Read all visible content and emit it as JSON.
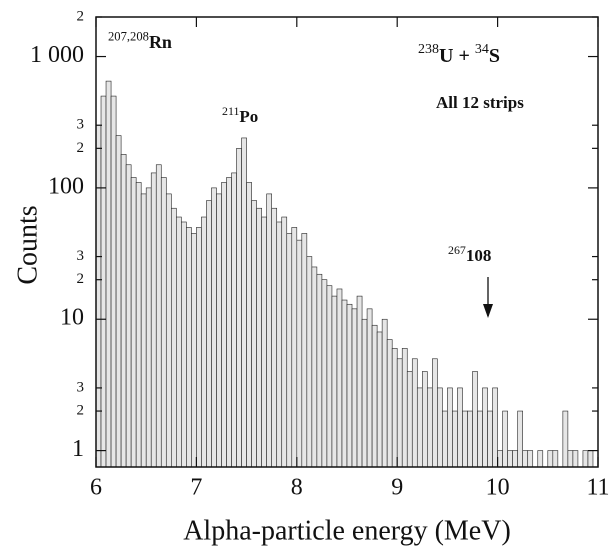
{
  "chart_data": {
    "type": "histogram",
    "xlabel": "Alpha-particle energy (MeV)",
    "ylabel": "Counts",
    "log_y": true,
    "color": "#e6e6e6",
    "edge_color": "#222222",
    "xlim": [
      6,
      11
    ],
    "xticks": [
      6,
      7,
      8,
      9,
      10,
      11
    ],
    "ylim": [
      0.75,
      2000
    ],
    "yticks": [
      1,
      2,
      3,
      10,
      {
        "value": 20,
        "label": "2"
      },
      {
        "value": 30,
        "label": "3"
      },
      100,
      {
        "value": 200,
        "label": "2"
      },
      {
        "value": 300,
        "label": "3"
      },
      {
        "value": 1000,
        "label": "1 000"
      },
      {
        "value": 2000,
        "label": "2"
      }
    ],
    "bins": [
      6,
      6.05,
      6.1,
      6.15,
      6.2,
      6.25,
      6.3,
      6.35,
      6.4,
      6.45,
      6.5,
      6.55,
      6.6,
      6.65,
      6.7,
      6.75,
      6.8,
      6.85,
      6.9,
      6.95,
      7,
      7.05,
      7.1,
      7.15,
      7.2,
      7.25,
      7.3,
      7.35,
      7.4,
      7.45,
      7.5,
      7.55,
      7.6,
      7.65,
      7.7,
      7.75,
      7.8,
      7.85,
      7.9,
      7.95,
      8,
      8.05,
      8.1,
      8.15,
      8.2,
      8.25,
      8.3,
      8.35,
      8.4,
      8.45,
      8.5,
      8.55,
      8.6,
      8.65,
      8.7,
      8.75,
      8.8,
      8.85,
      8.9,
      8.95,
      9,
      9.05,
      9.1,
      9.15,
      9.2,
      9.25,
      9.3,
      9.35,
      9.4,
      9.45,
      9.5,
      9.55,
      9.6,
      9.65,
      9.7,
      9.75,
      9.8,
      9.85,
      9.9,
      9.95,
      10,
      10.05,
      10.1,
      10.15,
      10.2,
      10.25,
      10.3,
      10.35,
      10.4,
      10.45,
      10.5,
      10.55,
      10.6,
      10.65,
      10.7,
      10.75,
      10.8,
      10.85,
      10.9,
      10.95,
      11
    ],
    "values": [
      300,
      500,
      650,
      500,
      250,
      180,
      150,
      120,
      110,
      90,
      100,
      130,
      150,
      120,
      90,
      70,
      60,
      55,
      50,
      45,
      50,
      60,
      80,
      100,
      90,
      110,
      120,
      130,
      200,
      240,
      110,
      80,
      70,
      60,
      90,
      70,
      55,
      60,
      45,
      50,
      40,
      45,
      30,
      25,
      22,
      20,
      18,
      15,
      17,
      14,
      13,
      12,
      15,
      10,
      12,
      9,
      8,
      10,
      7,
      6,
      5,
      6,
      4,
      5,
      3,
      4,
      3,
      5,
      3,
      2,
      3,
      2,
      3,
      2,
      2,
      4,
      2,
      3,
      2,
      3,
      1,
      2,
      1,
      1,
      2,
      1,
      1,
      0,
      1,
      0,
      1,
      1,
      0,
      2,
      1,
      1,
      0,
      1,
      1,
      0
    ],
    "annotations": [
      {
        "segments": [
          {
            "text": "207,208",
            "sup": true
          },
          {
            "text": "Rn",
            "sup": false
          }
        ]
      },
      {
        "segments": [
          {
            "text": "211",
            "sup": true
          },
          {
            "text": "Po",
            "sup": false
          }
        ]
      },
      {
        "segments": [
          {
            "text": "238",
            "sup": true
          },
          {
            "text": "U + ",
            "sup": false
          },
          {
            "text": "34",
            "sup": true
          },
          {
            "text": "S",
            "sup": false
          }
        ]
      },
      {
        "segments": [
          {
            "text": "All 12 strips",
            "sup": false
          }
        ]
      },
      {
        "segments": [
          {
            "text": "267",
            "sup": true
          },
          {
            "text": "108",
            "sup": false
          }
        ]
      }
    ]
  }
}
